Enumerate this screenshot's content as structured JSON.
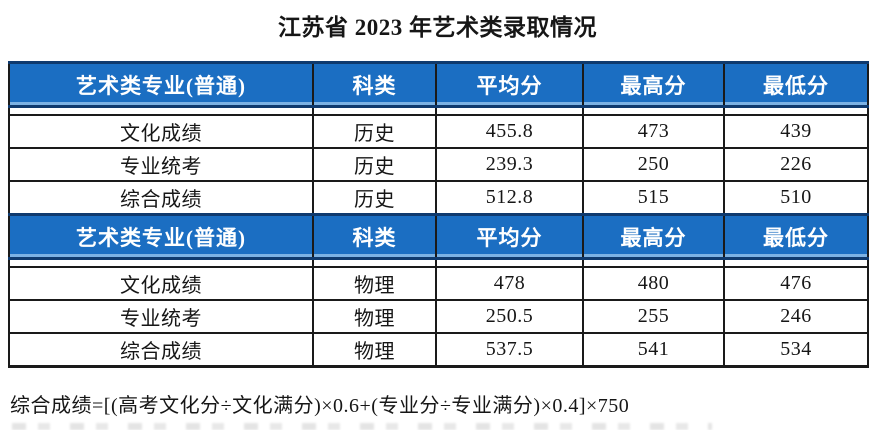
{
  "title": "江苏省 2023 年艺术类录取情况",
  "note": "综合成绩=[(高考文化分÷文化满分)×0.6+(专业分÷专业满分)×0.4]×750",
  "colors": {
    "header_bg": "#1b6ec2",
    "header_border": "#0f3a6e",
    "header_highlight": "#7cb2e4",
    "grid": "#1a1a1a",
    "header_text": "#ffffff",
    "body_text": "#161616"
  },
  "chart_data": {
    "type": "table",
    "title": "江苏省 2023 年艺术类录取情况",
    "columns": [
      "艺术类专业(普通)",
      "科类",
      "平均分",
      "最高分",
      "最低分"
    ],
    "rows": [
      [
        "文化成绩",
        "历史",
        455.8,
        473,
        439
      ],
      [
        "专业统考",
        "历史",
        239.3,
        250,
        226
      ],
      [
        "综合成绩",
        "历史",
        512.8,
        515,
        510
      ],
      [
        "文化成绩",
        "物理",
        478,
        480,
        476
      ],
      [
        "专业统考",
        "物理",
        250.5,
        255,
        246
      ],
      [
        "综合成绩",
        "物理",
        537.5,
        541,
        534
      ]
    ]
  },
  "table": {
    "sections": [
      {
        "headers": [
          "艺术类专业(普通)",
          "科类",
          "平均分",
          "最高分",
          "最低分"
        ],
        "rows": [
          [
            "文化成绩",
            "历史",
            "455.8",
            "473",
            "439"
          ],
          [
            "专业统考",
            "历史",
            "239.3",
            "250",
            "226"
          ],
          [
            "综合成绩",
            "历史",
            "512.8",
            "515",
            "510"
          ]
        ]
      },
      {
        "headers": [
          "艺术类专业(普通)",
          "科类",
          "平均分",
          "最高分",
          "最低分"
        ],
        "rows": [
          [
            "文化成绩",
            "物理",
            "478",
            "480",
            "476"
          ],
          [
            "专业统考",
            "物理",
            "250.5",
            "255",
            "246"
          ],
          [
            "综合成绩",
            "物理",
            "537.5",
            "541",
            "534"
          ]
        ]
      }
    ]
  }
}
